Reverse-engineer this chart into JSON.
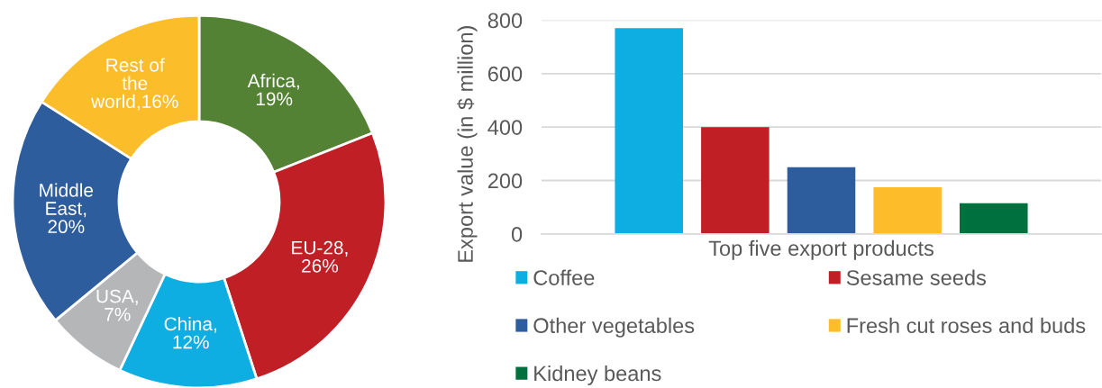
{
  "chart_data": [
    {
      "type": "donut",
      "categories": [
        "Africa",
        "EU-28",
        "China",
        "USA",
        "Middle East",
        "Rest of the world"
      ],
      "values": [
        19,
        26,
        12,
        7,
        20,
        16
      ],
      "colors": [
        "#548235",
        "#c01f26",
        "#0eaee3",
        "#b5b6b8",
        "#2e5d9d",
        "#fcbd2b"
      ],
      "value_labels": [
        ", 19%",
        ", 26%",
        ", 12%",
        ", 7%",
        ", 20%",
        ",16%"
      ]
    },
    {
      "type": "bar",
      "categories": [
        "Top five export products"
      ],
      "ylabel": "Export value (in $ million)",
      "series": [
        {
          "name": "Coffee",
          "color": "#0eaee3",
          "values": [
            770
          ]
        },
        {
          "name": "Sesame seeds",
          "color": "#c01f26",
          "values": [
            400
          ]
        },
        {
          "name": "Other vegetables",
          "color": "#2e5d9d",
          "values": [
            250
          ]
        },
        {
          "name": "Fresh cut roses and buds",
          "color": "#fdbd2b",
          "values": [
            175
          ]
        },
        {
          "name": "Kidney beans",
          "color": "#00703f",
          "values": [
            115
          ]
        }
      ],
      "ylim": [
        0,
        800
      ],
      "yticks": [
        0,
        200,
        400,
        600,
        800
      ],
      "grid": "y",
      "legend": "bottom"
    }
  ]
}
